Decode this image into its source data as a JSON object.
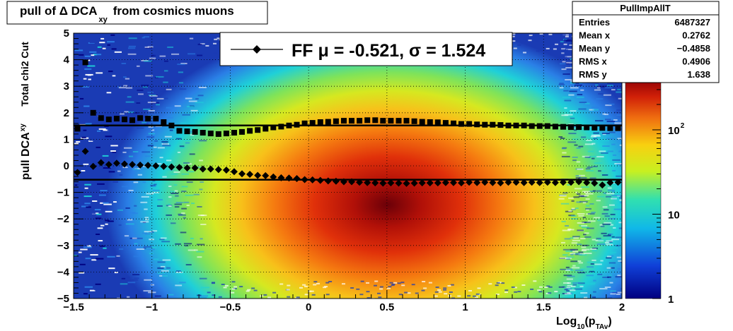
{
  "title": {
    "prefix": "pull of Δ DCA",
    "sub": "xy",
    "suffix": "from cosmics muons"
  },
  "legend": {
    "entry": "FF μ = -0.521, σ =   1.524"
  },
  "stats_box": {
    "name": "PullImpAllT",
    "rows": [
      {
        "label": "Entries",
        "value": "6487327"
      },
      {
        "label": "Mean x",
        "value": "0.2762"
      },
      {
        "label": "Mean y",
        "value": "−0.4858"
      },
      {
        "label": "RMS x",
        "value": "0.4906"
      },
      {
        "label": "RMS y",
        "value": "1.638"
      }
    ]
  },
  "axes": {
    "ylabel_outer": "pull DCA",
    "ylabel_outer_sub": "xy",
    "ylabel_inner": "Total chi2 Cut",
    "xlabel_prefix": "Log",
    "xlabel_sub1": "10",
    "xlabel_mid": "(p",
    "xlabel_sub2": "TAv",
    "xlabel_suffix": ")",
    "x_ticks": [
      "−1.5",
      "−1",
      "−0.5",
      "0",
      "0.5",
      "1",
      "1.5",
      "2"
    ],
    "y_ticks": [
      "−5",
      "−4",
      "−3",
      "−2",
      "−1",
      "0",
      "1",
      "2",
      "3",
      "4",
      "5"
    ],
    "z_ticks": [
      {
        "label": "1",
        "exp": ""
      },
      {
        "label": "10",
        "exp": ""
      },
      {
        "label": "10",
        "exp": "2"
      }
    ]
  },
  "chart_data": {
    "type": "heatmap",
    "xlim": [
      -1.5,
      2.0
    ],
    "ylim": [
      -5,
      5
    ],
    "zscale": "log",
    "zlim": [
      1,
      400
    ],
    "grid": true,
    "stats_placement": "top-right",
    "legend_placement": "top-center",
    "heatmap_peak": {
      "x": 0.45,
      "y": -0.9
    },
    "series": [
      {
        "kind": "mean",
        "marker": "diamond",
        "x": [
          -1.475,
          -1.425,
          -1.375,
          -1.325,
          -1.275,
          -1.225,
          -1.175,
          -1.125,
          -1.075,
          -1.025,
          -0.975,
          -0.925,
          -0.875,
          -0.825,
          -0.775,
          -0.725,
          -0.675,
          -0.625,
          -0.575,
          -0.525,
          -0.475,
          -0.425,
          -0.375,
          -0.325,
          -0.275,
          -0.225,
          -0.175,
          -0.125,
          -0.075,
          -0.025,
          0.025,
          0.075,
          0.125,
          0.175,
          0.225,
          0.275,
          0.325,
          0.375,
          0.425,
          0.475,
          0.525,
          0.575,
          0.625,
          0.675,
          0.725,
          0.775,
          0.825,
          0.875,
          0.925,
          0.975,
          1.025,
          1.075,
          1.125,
          1.175,
          1.225,
          1.275,
          1.325,
          1.375,
          1.425,
          1.475,
          1.525,
          1.575,
          1.625,
          1.675,
          1.725,
          1.775,
          1.825,
          1.875,
          1.925,
          1.975
        ],
        "y": [
          -0.25,
          0.55,
          -0.02,
          0.12,
          0.05,
          0.1,
          0.07,
          0.05,
          0.03,
          0.02,
          0.0,
          -0.02,
          -0.04,
          -0.06,
          -0.08,
          -0.08,
          -0.12,
          -0.12,
          -0.14,
          -0.16,
          -0.22,
          -0.3,
          -0.32,
          -0.36,
          -0.37,
          -0.42,
          -0.45,
          -0.46,
          -0.48,
          -0.52,
          -0.53,
          -0.55,
          -0.57,
          -0.58,
          -0.6,
          -0.6,
          -0.62,
          -0.63,
          -0.64,
          -0.65,
          -0.64,
          -0.65,
          -0.66,
          -0.65,
          -0.64,
          -0.64,
          -0.64,
          -0.63,
          -0.63,
          -0.64,
          -0.62,
          -0.63,
          -0.62,
          -0.63,
          -0.64,
          -0.62,
          -0.62,
          -0.63,
          -0.62,
          -0.63,
          -0.62,
          -0.63,
          -0.62,
          -0.62,
          -0.6,
          -0.63,
          -0.65,
          -0.72,
          -0.63,
          -0.62
        ]
      },
      {
        "kind": "rms",
        "marker": "square",
        "x": [
          -1.475,
          -1.425,
          -1.375,
          -1.325,
          -1.275,
          -1.225,
          -1.175,
          -1.125,
          -1.075,
          -1.025,
          -0.975,
          -0.925,
          -0.875,
          -0.825,
          -0.775,
          -0.725,
          -0.675,
          -0.625,
          -0.575,
          -0.525,
          -0.475,
          -0.425,
          -0.375,
          -0.325,
          -0.275,
          -0.225,
          -0.175,
          -0.125,
          -0.075,
          -0.025,
          0.025,
          0.075,
          0.125,
          0.175,
          0.225,
          0.275,
          0.325,
          0.375,
          0.425,
          0.475,
          0.525,
          0.575,
          0.625,
          0.675,
          0.725,
          0.775,
          0.825,
          0.875,
          0.925,
          0.975,
          1.025,
          1.075,
          1.125,
          1.175,
          1.225,
          1.275,
          1.325,
          1.375,
          1.425,
          1.475,
          1.525,
          1.575,
          1.625,
          1.675,
          1.725,
          1.775,
          1.825,
          1.875,
          1.925,
          1.975
        ],
        "y": [
          1.4,
          3.9,
          2.0,
          1.8,
          1.75,
          1.78,
          1.75,
          1.72,
          1.8,
          1.78,
          1.78,
          1.65,
          1.52,
          1.32,
          1.3,
          1.28,
          1.25,
          1.22,
          1.2,
          1.22,
          1.25,
          1.28,
          1.32,
          1.35,
          1.4,
          1.45,
          1.48,
          1.52,
          1.55,
          1.6,
          1.62,
          1.65,
          1.66,
          1.68,
          1.7,
          1.7,
          1.7,
          1.72,
          1.72,
          1.7,
          1.7,
          1.7,
          1.7,
          1.68,
          1.66,
          1.65,
          1.64,
          1.62,
          1.6,
          1.58,
          1.58,
          1.56,
          1.55,
          1.55,
          1.54,
          1.52,
          1.52,
          1.52,
          1.5,
          1.5,
          1.5,
          1.48,
          1.47,
          1.46,
          1.46,
          1.45,
          1.44,
          1.43,
          1.42,
          1.42
        ]
      }
    ],
    "fit_lines": [
      {
        "kind": "mu",
        "y": -0.521
      },
      {
        "kind": "sigma",
        "y": 1.524
      }
    ]
  }
}
